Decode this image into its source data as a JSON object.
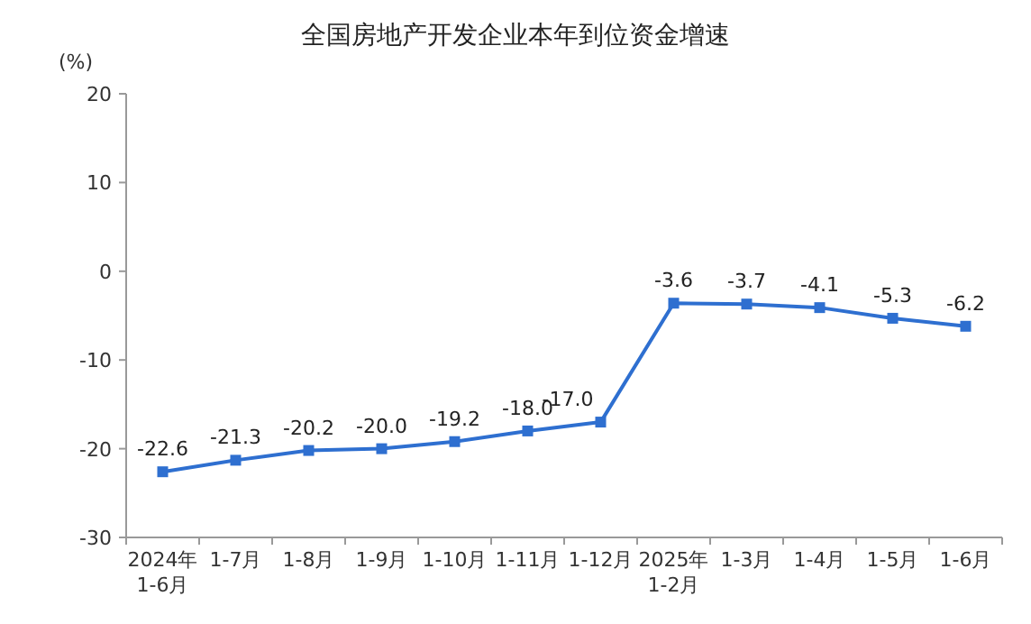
{
  "chart_data": {
    "type": "line",
    "title": "全国房地产开发企业本年到位资金增速",
    "ylabel": "(%)",
    "categories": [
      "2024年\n1-6月",
      "1-7月",
      "1-8月",
      "1-9月",
      "1-10月",
      "1-11月",
      "1-12月",
      "2025年\n1-2月",
      "1-3月",
      "1-4月",
      "1-5月",
      "1-6月"
    ],
    "values": [
      -22.6,
      -21.3,
      -20.2,
      -20.0,
      -19.2,
      -18.0,
      -17.0,
      -3.6,
      -3.7,
      -4.1,
      -5.3,
      -6.2
    ],
    "value_labels": [
      "-22.6",
      "-21.3",
      "-20.2",
      "-20.0",
      "-19.2",
      "-18.0",
      "-17.0",
      "-3.6",
      "-3.7",
      "-4.1",
      "-5.3",
      "-6.2"
    ],
    "color": "#2e6fd0",
    "ylim": [
      -30,
      20
    ],
    "yticks": [
      -30,
      -20,
      -10,
      0,
      10,
      20
    ],
    "marker": "square",
    "line_style": "solid"
  }
}
